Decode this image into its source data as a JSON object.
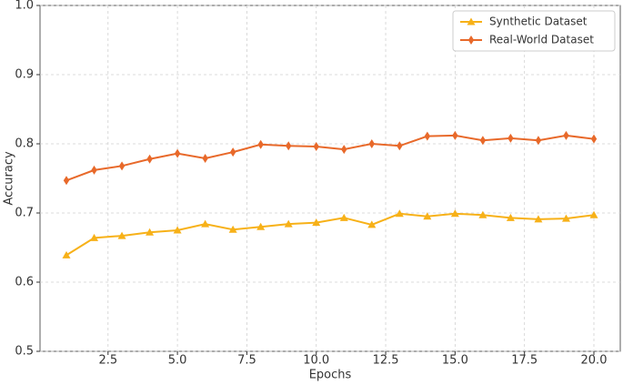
{
  "chart_data": {
    "type": "line",
    "xlabel": "Epochs",
    "ylabel": "Accuracy",
    "x": [
      1,
      2,
      3,
      4,
      5,
      6,
      7,
      8,
      9,
      10,
      11,
      12,
      13,
      14,
      15,
      16,
      17,
      18,
      19,
      20
    ],
    "series": [
      {
        "name": "Synthetic Dataset",
        "color": "#f7b118",
        "marker": "triangle",
        "values": [
          0.639,
          0.664,
          0.667,
          0.672,
          0.675,
          0.684,
          0.676,
          0.68,
          0.684,
          0.686,
          0.693,
          0.683,
          0.699,
          0.695,
          0.699,
          0.697,
          0.693,
          0.691,
          0.692,
          0.697
        ]
      },
      {
        "name": "Real-World Dataset",
        "color": "#e8692a",
        "marker": "diamond",
        "values": [
          0.747,
          0.762,
          0.768,
          0.778,
          0.786,
          0.779,
          0.788,
          0.799,
          0.797,
          0.796,
          0.792,
          0.8,
          0.797,
          0.811,
          0.812,
          0.805,
          0.808,
          0.805,
          0.812,
          0.807
        ]
      }
    ],
    "xlim": [
      0.05,
      20.95
    ],
    "xticks": [
      2.5,
      {
        "value": 5,
        "label": "5.0"
      },
      7.5,
      {
        "value": 10,
        "label": "10.0"
      },
      12.5,
      {
        "value": 15,
        "label": "15.0"
      },
      17.5,
      {
        "value": 20,
        "label": "20.0"
      }
    ],
    "ylim": [
      0.5,
      1
    ],
    "yticks": [
      0.5,
      0.6,
      0.7,
      0.8,
      0.9,
      {
        "value": 1,
        "label": "1.0"
      }
    ],
    "grid": true,
    "legend": "upper right"
  }
}
